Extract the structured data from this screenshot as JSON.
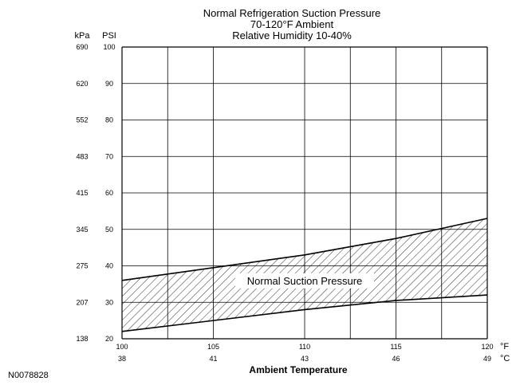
{
  "figure_id": "N0078828",
  "chart_data": {
    "type": "area",
    "title": [
      "Normal Refrigeration Suction Pressure",
      "70-120°F Ambient",
      "Relative Humidity 10-40%"
    ],
    "xlabel": "Ambient Temperature",
    "x_units": [
      "°F",
      "°C"
    ],
    "y_units": [
      "kPa",
      "PSI"
    ],
    "xlim": [
      100,
      120
    ],
    "ylim": [
      20,
      100
    ],
    "x_ticks_f": [
      "100",
      "105",
      "110",
      "115",
      "120"
    ],
    "x_ticks_c": [
      "38",
      "41",
      "43",
      "46",
      "49"
    ],
    "y_ticks_psi": [
      "20",
      "30",
      "40",
      "50",
      "60",
      "70",
      "80",
      "90",
      "100"
    ],
    "y_ticks_kpa": [
      "138",
      "207",
      "275",
      "345",
      "415",
      "483",
      "552",
      "620",
      "690"
    ],
    "grid": true,
    "x_gridlines": [
      100,
      102.5,
      105,
      110,
      112.5,
      115,
      117.5,
      120
    ],
    "series": [
      {
        "name": "upper",
        "x": [
          100,
          105,
          110,
          115,
          120
        ],
        "y": [
          36,
          39.5,
          43,
          47.5,
          53
        ]
      },
      {
        "name": "lower",
        "x": [
          100,
          105,
          110,
          115,
          120
        ],
        "y": [
          22,
          25,
          28,
          30.5,
          32
        ]
      }
    ],
    "band_label": "Normal Suction Pressure",
    "band_label_position": {
      "x": 110,
      "y": 36
    }
  }
}
